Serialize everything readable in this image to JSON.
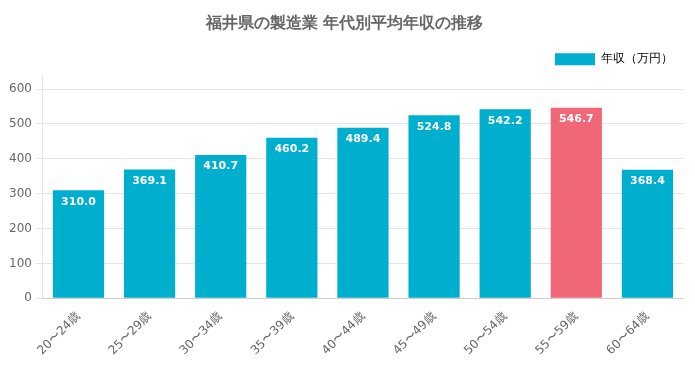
{
  "chart_data": {
    "type": "bar",
    "title": "福井県の製造業 年代別平均年収の推移",
    "categories": [
      "20〜24歳",
      "25〜29歳",
      "30〜34歳",
      "35〜39歳",
      "40〜44歳",
      "45〜49歳",
      "50〜54歳",
      "55〜59歳",
      "60〜64歳"
    ],
    "series": [
      {
        "name": "年収（万円）",
        "color": "#00AECD",
        "colors": [
          "#00AECD",
          "#00AECD",
          "#00AECD",
          "#00AECD",
          "#00AECD",
          "#00AECD",
          "#00AECD",
          "#F06878",
          "#00AECD"
        ],
        "values": [
          310.0,
          369.1,
          410.7,
          460.2,
          489.4,
          524.8,
          542.2,
          546.7,
          368.4
        ],
        "value_labels": [
          "310.0",
          "369.1",
          "410.7",
          "460.2",
          "489.4",
          "524.8",
          "542.2",
          "546.7",
          "368.4"
        ]
      }
    ],
    "ylim": [
      0,
      640
    ],
    "yticks": [
      0,
      100,
      200,
      300,
      400,
      500,
      600
    ],
    "grid": true,
    "legend": "upper right",
    "data_labels": true
  }
}
